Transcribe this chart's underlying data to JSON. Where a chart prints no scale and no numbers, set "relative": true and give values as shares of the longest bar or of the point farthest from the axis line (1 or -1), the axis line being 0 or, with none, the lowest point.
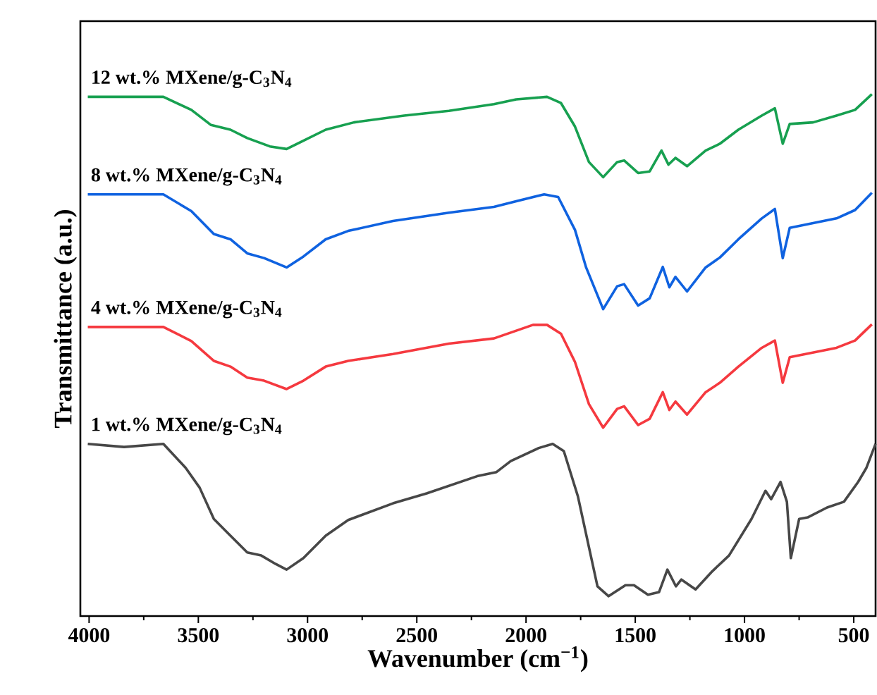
{
  "chart_data": {
    "type": "line",
    "relative": true,
    "xlabel": "Wavenumber (cm$^{−1}$)",
    "ylabel": "Transmittance (a.u.)",
    "xlim": [
      4040,
      400
    ],
    "xticks": [
      4000,
      3500,
      3000,
      2500,
      2000,
      1500,
      1000,
      500
    ],
    "series": [
      {
        "name": "1 wt.% MXene/g-C$_{3}$N$_{4}$",
        "color": "#474747",
        "x": [
          4006,
          3840,
          3660,
          3558,
          3494,
          3429,
          3365,
          3276,
          3212,
          3147,
          3096,
          3019,
          2917,
          2814,
          2609,
          2455,
          2224,
          2135,
          2070,
          1942,
          1878,
          1827,
          1763,
          1712,
          1673,
          1622,
          1545,
          1506,
          1442,
          1391,
          1353,
          1314,
          1289,
          1224,
          1147,
          1071,
          968,
          904,
          878,
          835,
          806,
          788,
          750,
          711,
          622,
          545,
          480,
          442,
          400
        ],
        "values": [
          0.33,
          0.324,
          0.33,
          0.284,
          0.246,
          0.186,
          0.159,
          0.122,
          0.116,
          0.1,
          0.089,
          0.111,
          0.154,
          0.184,
          0.216,
          0.235,
          0.268,
          0.276,
          0.297,
          0.322,
          0.33,
          0.316,
          0.23,
          0.132,
          0.057,
          0.038,
          0.059,
          0.059,
          0.041,
          0.046,
          0.089,
          0.057,
          0.07,
          0.051,
          0.086,
          0.116,
          0.186,
          0.24,
          0.224,
          0.257,
          0.219,
          0.111,
          0.186,
          0.189,
          0.208,
          0.219,
          0.257,
          0.284,
          0.33
        ]
      },
      {
        "name": "4 wt.% MXene/g-C$_{3}$N$_{4}$",
        "color": "#f5393f",
        "x": [
          4006,
          3660,
          3532,
          3429,
          3353,
          3276,
          3199,
          3096,
          3019,
          2917,
          2814,
          2609,
          2353,
          2147,
          1968,
          1904,
          1840,
          1776,
          1712,
          1647,
          1583,
          1551,
          1487,
          1434,
          1374,
          1344,
          1316,
          1263,
          1178,
          1113,
          1028,
          921,
          861,
          825,
          793,
          686,
          579,
          494,
          417
        ],
        "values": [
          0.554,
          0.554,
          0.527,
          0.489,
          0.478,
          0.457,
          0.451,
          0.435,
          0.451,
          0.478,
          0.489,
          0.502,
          0.522,
          0.532,
          0.558,
          0.558,
          0.541,
          0.487,
          0.406,
          0.361,
          0.397,
          0.402,
          0.366,
          0.378,
          0.429,
          0.395,
          0.411,
          0.386,
          0.429,
          0.447,
          0.478,
          0.514,
          0.528,
          0.447,
          0.496,
          0.505,
          0.514,
          0.528,
          0.559
        ]
      },
      {
        "name": "8 wt.% MXene/g-C$_{3}$N$_{4}$",
        "color": "#0f62e0",
        "x": [
          4006,
          3660,
          3532,
          3429,
          3353,
          3276,
          3199,
          3096,
          3019,
          2917,
          2814,
          2609,
          2353,
          2147,
          2045,
          1917,
          1853,
          1776,
          1725,
          1647,
          1583,
          1551,
          1487,
          1434,
          1374,
          1344,
          1316,
          1263,
          1178,
          1113,
          1028,
          921,
          861,
          825,
          793,
          686,
          579,
          494,
          417
        ],
        "values": [
          0.808,
          0.808,
          0.776,
          0.732,
          0.722,
          0.695,
          0.686,
          0.668,
          0.689,
          0.722,
          0.738,
          0.757,
          0.773,
          0.784,
          0.795,
          0.808,
          0.803,
          0.74,
          0.668,
          0.588,
          0.632,
          0.636,
          0.595,
          0.609,
          0.669,
          0.63,
          0.65,
          0.622,
          0.668,
          0.687,
          0.722,
          0.762,
          0.78,
          0.686,
          0.744,
          0.753,
          0.762,
          0.778,
          0.811
        ]
      },
      {
        "name": "12 wt.% MXene/g-C$_{3}$N$_{4}$",
        "color": "#17a050",
        "x": [
          4006,
          3660,
          3532,
          3442,
          3353,
          3276,
          3173,
          3096,
          3019,
          2917,
          2788,
          2558,
          2353,
          2147,
          2045,
          1904,
          1840,
          1776,
          1712,
          1647,
          1583,
          1551,
          1487,
          1434,
          1380,
          1348,
          1316,
          1263,
          1178,
          1113,
          1028,
          921,
          861,
          825,
          793,
          686,
          579,
          494,
          417
        ],
        "values": [
          0.995,
          0.995,
          0.97,
          0.941,
          0.932,
          0.916,
          0.9,
          0.895,
          0.911,
          0.932,
          0.946,
          0.959,
          0.968,
          0.981,
          0.99,
          0.995,
          0.983,
          0.938,
          0.87,
          0.841,
          0.87,
          0.873,
          0.849,
          0.852,
          0.892,
          0.865,
          0.878,
          0.862,
          0.892,
          0.905,
          0.932,
          0.959,
          0.973,
          0.905,
          0.943,
          0.946,
          0.959,
          0.97,
          1.0
        ]
      }
    ]
  }
}
